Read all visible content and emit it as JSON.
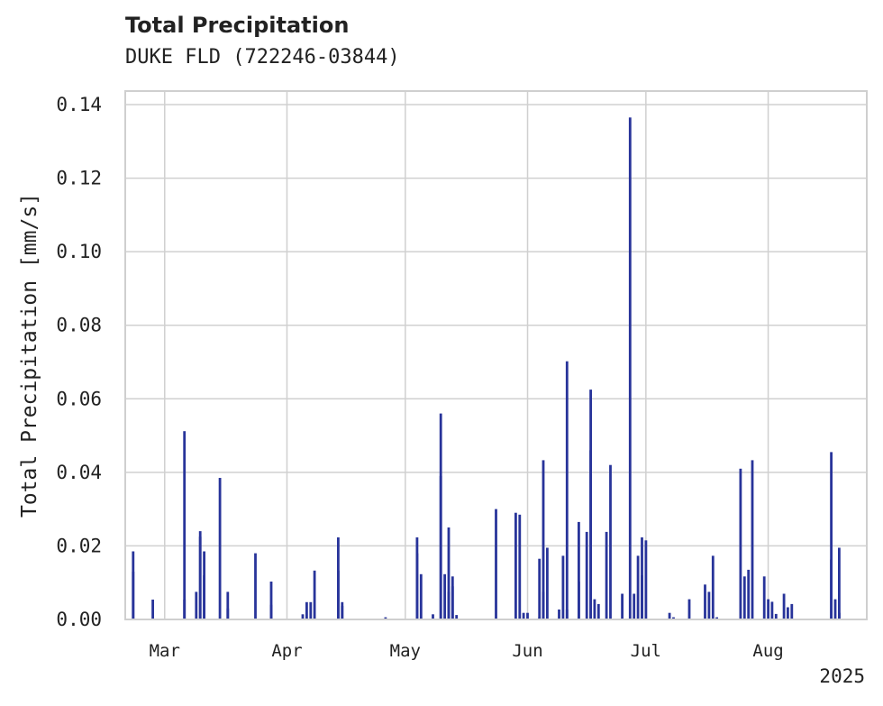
{
  "chart_data": {
    "type": "bar",
    "title": "Total Precipitation",
    "subtitle": "DUKE FLD (722246-03844)",
    "ylabel": "Total Precipitation [mm/s]",
    "xlabel": "",
    "year_label": "2025",
    "ylim": [
      0,
      0.14
    ],
    "yticks": [
      "0.00",
      "0.02",
      "0.04",
      "0.06",
      "0.08",
      "0.10",
      "0.12",
      "0.14"
    ],
    "xlim": [
      "2025-02-19",
      "2025-08-26"
    ],
    "xticks": [
      {
        "date": "2025-03-01",
        "label": "Mar"
      },
      {
        "date": "2025-04-01",
        "label": "Apr"
      },
      {
        "date": "2025-05-01",
        "label": "May"
      },
      {
        "date": "2025-06-01",
        "label": "Jun"
      },
      {
        "date": "2025-07-01",
        "label": "Jul"
      },
      {
        "date": "2025-08-01",
        "label": "Aug"
      }
    ],
    "grid": true,
    "bar_color": "#28349a",
    "series": [
      {
        "points": [
          [
            "2025-02-21",
            0.0185
          ],
          [
            "2025-02-21",
            0.013
          ],
          [
            "2025-02-26",
            0.0054
          ],
          [
            "2025-03-06",
            0.0512
          ],
          [
            "2025-03-06",
            0.0054
          ],
          [
            "2025-03-09",
            0.0075
          ],
          [
            "2025-03-10",
            0.0225
          ],
          [
            "2025-03-10",
            0.024
          ],
          [
            "2025-03-11",
            0.0185
          ],
          [
            "2025-03-11",
            0.012
          ],
          [
            "2025-03-15",
            0.0385
          ],
          [
            "2025-03-17",
            0.0075
          ],
          [
            "2025-03-17",
            0.003
          ],
          [
            "2025-03-24",
            0.018
          ],
          [
            "2025-03-28",
            0.004
          ],
          [
            "2025-03-28",
            0.0103
          ],
          [
            "2025-04-05",
            0.0014
          ],
          [
            "2025-04-06",
            0.0047
          ],
          [
            "2025-04-07",
            0.0047
          ],
          [
            "2025-04-08",
            0.0133
          ],
          [
            "2025-04-14",
            0.0133
          ],
          [
            "2025-04-14",
            0.0223
          ],
          [
            "2025-04-15",
            0.0047
          ],
          [
            "2025-04-15",
            0.0037
          ],
          [
            "2025-04-26",
            0.0006
          ],
          [
            "2025-05-04",
            0.018
          ],
          [
            "2025-05-04",
            0.0223
          ],
          [
            "2025-05-05",
            0.0123
          ],
          [
            "2025-05-08",
            0.0014
          ],
          [
            "2025-05-10",
            0.039
          ],
          [
            "2025-05-10",
            0.056
          ],
          [
            "2025-05-11",
            0.0123
          ],
          [
            "2025-05-12",
            0.0075
          ],
          [
            "2025-05-12",
            0.025
          ],
          [
            "2025-05-13",
            0.0117
          ],
          [
            "2025-05-13",
            0.009
          ],
          [
            "2025-05-14",
            0.0012
          ],
          [
            "2025-05-24",
            0.03
          ],
          [
            "2025-05-29",
            0.029
          ],
          [
            "2025-05-30",
            0.0285
          ],
          [
            "2025-05-31",
            0.0018
          ],
          [
            "2025-06-01",
            0.0018
          ],
          [
            "2025-06-04",
            0.0006
          ],
          [
            "2025-06-04",
            0.0165
          ],
          [
            "2025-06-05",
            0.0075
          ],
          [
            "2025-06-05",
            0.0433
          ],
          [
            "2025-06-06",
            0.0195
          ],
          [
            "2025-06-09",
            0.0027
          ],
          [
            "2025-06-10",
            0.0173
          ],
          [
            "2025-06-11",
            0.0027
          ],
          [
            "2025-06-11",
            0.0702
          ],
          [
            "2025-06-14",
            0.0103
          ],
          [
            "2025-06-14",
            0.0265
          ],
          [
            "2025-06-16",
            0.0238
          ],
          [
            "2025-06-17",
            0.0625
          ],
          [
            "2025-06-17",
            0.046
          ],
          [
            "2025-06-18",
            0.0055
          ],
          [
            "2025-06-19",
            0.0042
          ],
          [
            "2025-06-21",
            0.0238
          ],
          [
            "2025-06-22",
            0.042
          ],
          [
            "2025-06-25",
            0.007
          ],
          [
            "2025-06-27",
            0.1365
          ],
          [
            "2025-06-28",
            0.007
          ],
          [
            "2025-06-29",
            0.0173
          ],
          [
            "2025-06-30",
            0.0223
          ],
          [
            "2025-06-30",
            0.012
          ],
          [
            "2025-07-01",
            0.0215
          ],
          [
            "2025-07-07",
            0.0018
          ],
          [
            "2025-07-08",
            0.0006
          ],
          [
            "2025-07-12",
            0.0055
          ],
          [
            "2025-07-16",
            0.0095
          ],
          [
            "2025-07-17",
            0.0075
          ],
          [
            "2025-07-18",
            0.0173
          ],
          [
            "2025-07-19",
            0.0006
          ],
          [
            "2025-07-25",
            0.041
          ],
          [
            "2025-07-26",
            0.0117
          ],
          [
            "2025-07-27",
            0.0135
          ],
          [
            "2025-07-28",
            0.0433
          ],
          [
            "2025-07-31",
            0.0117
          ],
          [
            "2025-08-01",
            0.0055
          ],
          [
            "2025-08-02",
            0.0048
          ],
          [
            "2025-08-03",
            0.0015
          ],
          [
            "2025-08-05",
            0.007
          ],
          [
            "2025-08-06",
            0.0033
          ],
          [
            "2025-08-07",
            0.0042
          ],
          [
            "2025-08-17",
            0.0455
          ],
          [
            "2025-08-17",
            0.0163
          ],
          [
            "2025-08-18",
            0.0055
          ],
          [
            "2025-08-19",
            0.0195
          ],
          [
            "2025-08-19",
            0.0018
          ]
        ]
      }
    ]
  }
}
